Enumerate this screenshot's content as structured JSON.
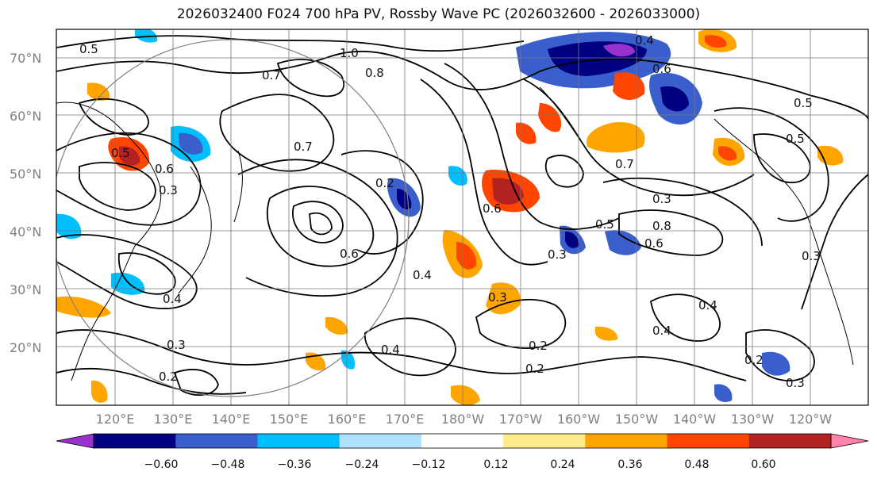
{
  "title": "2026032400 F024 700 hPa PV, Rossby Wave PC (2026032600 - 2026033000)",
  "lat_labels": [
    "70°N",
    "60°N",
    "50°N",
    "40°N",
    "30°N",
    "20°N"
  ],
  "lon_labels": [
    "120°E",
    "130°E",
    "140°E",
    "150°E",
    "160°E",
    "170°E",
    "180°W",
    "170°W",
    "160°W",
    "150°W",
    "140°W",
    "130°W",
    "120°W"
  ],
  "colorbar": {
    "ticks": [
      "−0.60",
      "−0.48",
      "−0.36",
      "−0.24",
      "−0.12",
      "0.12",
      "0.24",
      "0.36",
      "0.48",
      "0.60"
    ],
    "colors": [
      "#9932cc",
      "#000080",
      "#3a5fcd",
      "#00bfff",
      "#b0e2ff",
      "#ffffff",
      "#ffec8b",
      "#ffa500",
      "#ff4500",
      "#b22222",
      "#ff82ab"
    ]
  },
  "contour_labels": [
    "0.5",
    "0.7",
    "0.8",
    "0.6",
    "0.4",
    "0.3",
    "0.2",
    "1.0",
    "0.4",
    "0.6",
    "0.5",
    "0.3",
    "0.7",
    "0.2",
    "0.6",
    "0.5",
    "0.3",
    "0.2",
    "0.4",
    "0.7",
    "0.2",
    "0.3",
    "0.6",
    "0.4",
    "0.5",
    "0.3",
    "0.8",
    "0.5",
    "0.4",
    "0.6",
    "0.3",
    "0.2",
    "0.4",
    "0.3"
  ]
}
